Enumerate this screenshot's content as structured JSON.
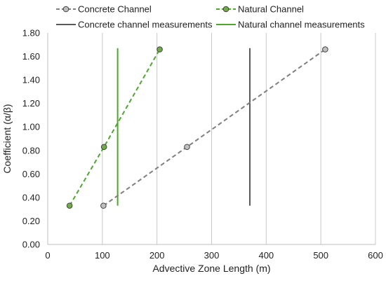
{
  "chart_data": {
    "type": "scatter",
    "title": "",
    "xlabel": "Advective Zone Length (m)",
    "ylabel": "Coefficient (α/β)",
    "xlim": [
      0,
      600
    ],
    "ylim": [
      0,
      1.8
    ],
    "xticks": [
      0,
      100,
      200,
      300,
      400,
      500,
      600
    ],
    "xtick_labels": [
      "0",
      "100",
      "200",
      "300",
      "400",
      "500",
      "600"
    ],
    "yticks": [
      0,
      0.2,
      0.4,
      0.6,
      0.8,
      1.0,
      1.2,
      1.4,
      1.6,
      1.8
    ],
    "ytick_labels": [
      "0.00",
      "0.20",
      "0.40",
      "0.60",
      "0.80",
      "1.00",
      "1.20",
      "1.40",
      "1.60",
      "1.80"
    ],
    "grid": "vertical",
    "legend_position": "top",
    "series": [
      {
        "name": "Concrete Channel",
        "style": "dashed-line-markers",
        "color": "#7f7f7f",
        "marker_fill": "#bfbfbf",
        "x": [
          102,
          255,
          508
        ],
        "y": [
          0.33,
          0.83,
          1.66
        ]
      },
      {
        "name": "Natural Channel",
        "style": "dashed-line-markers",
        "color": "#4ea72e",
        "marker_fill": "#70ad47",
        "x": [
          40,
          103,
          205
        ],
        "y": [
          0.33,
          0.83,
          1.66
        ]
      },
      {
        "name": "Concrete channel measurements",
        "style": "solid-line",
        "color": "#595959",
        "x": [
          370,
          370
        ],
        "y": [
          0.33,
          1.67
        ]
      },
      {
        "name": "Natural channel measurements",
        "style": "solid-line",
        "color": "#4ea72e",
        "x": [
          128,
          128
        ],
        "y": [
          0.33,
          1.67
        ]
      }
    ]
  }
}
